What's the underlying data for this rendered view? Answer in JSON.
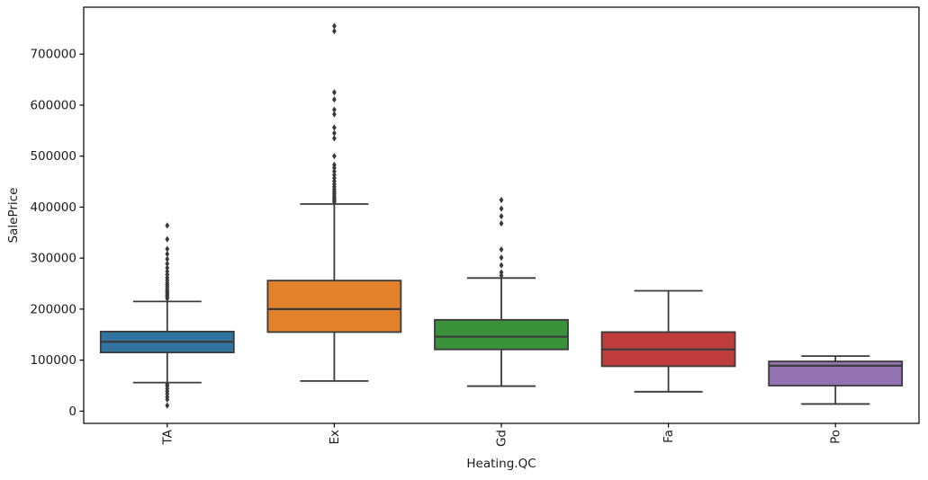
{
  "figure": {
    "xlabel": "Heating.QC",
    "ylabel": "SalePrice"
  },
  "chart_data": {
    "type": "box",
    "title": "",
    "xlabel": "Heating.QC",
    "ylabel": "SalePrice",
    "categories": [
      "TA",
      "Ex",
      "Gd",
      "Fa",
      "Po"
    ],
    "palette": [
      "#3274a1",
      "#e1812c",
      "#3a923a",
      "#c03d3e",
      "#9372b2"
    ],
    "edge_color": "#3a3a3a",
    "flier_color": "#3a3a3a",
    "spine_color": "#000000",
    "text_color": "#1a1a1a",
    "grid": false,
    "legend": null,
    "x_tick_rotation_deg": 90,
    "y_ticks": [
      0,
      100000,
      200000,
      300000,
      400000,
      500000,
      600000,
      700000
    ],
    "y_tick_labels": [
      "0",
      "100000",
      "200000",
      "300000",
      "400000",
      "500000",
      "600000",
      "700000"
    ],
    "ylim": [
      -24000,
      792000
    ],
    "boxes": [
      {
        "category": "TA",
        "color": "#3274a1",
        "whisker_low": 56000,
        "q1": 115000,
        "median": 136000,
        "q3": 156000,
        "whisker_high": 215000,
        "outliers_low": [
          11000,
          23000,
          28000,
          34000,
          39000,
          44000,
          49000,
          52000
        ],
        "outliers_high": [
          221000,
          224000,
          227000,
          230000,
          233000,
          236000,
          240000,
          244000,
          248000,
          252000,
          257000,
          262000,
          268000,
          274000,
          281000,
          289000,
          298000,
          308000,
          318000,
          337000,
          364000
        ]
      },
      {
        "category": "Ex",
        "color": "#e1812c",
        "whisker_low": 59000,
        "q1": 155000,
        "median": 200000,
        "q3": 256000,
        "whisker_high": 406000,
        "outliers_low": [],
        "outliers_high": [
          410000,
          413000,
          416000,
          419000,
          423000,
          427000,
          431000,
          435000,
          440000,
          445000,
          451000,
          457000,
          463000,
          470000,
          477000,
          483000,
          500000,
          535000,
          545000,
          556000,
          582000,
          591000,
          611000,
          625000,
          745000,
          755000
        ]
      },
      {
        "category": "Gd",
        "color": "#3a923a",
        "whisker_low": 49000,
        "q1": 121000,
        "median": 146000,
        "q3": 179000,
        "whisker_high": 261000,
        "outliers_low": [],
        "outliers_high": [
          266000,
          272000,
          286000,
          301000,
          317000,
          368000,
          382000,
          397000,
          414000
        ]
      },
      {
        "category": "Fa",
        "color": "#c03d3e",
        "whisker_low": 38000,
        "q1": 88000,
        "median": 121000,
        "q3": 155000,
        "whisker_high": 236000,
        "outliers_low": [],
        "outliers_high": []
      },
      {
        "category": "Po",
        "color": "#9372b2",
        "whisker_low": 14000,
        "q1": 50000,
        "median": 89000,
        "q3": 97500,
        "whisker_high": 108000,
        "outliers_low": [],
        "outliers_high": []
      }
    ]
  }
}
